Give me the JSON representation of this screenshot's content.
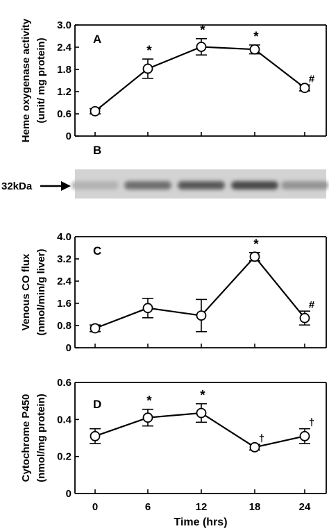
{
  "chart_data": [
    {
      "panel": "A",
      "type": "line",
      "ylabel_lines": [
        "Heme oxygenase activity",
        "(unit/ mg protein)"
      ],
      "x": [
        0,
        6,
        12,
        18,
        24
      ],
      "y": [
        0.67,
        1.82,
        2.41,
        2.34,
        1.3
      ],
      "yerr": [
        0.07,
        0.26,
        0.22,
        0.12,
        0.08
      ],
      "annotations": [
        "",
        "*",
        "*",
        "*",
        "#"
      ],
      "ylim": [
        0,
        3.0
      ],
      "yticks": [
        "0",
        "0.6",
        "1.2",
        "1.8",
        "2.4",
        "3.0"
      ],
      "ytick_values": [
        0,
        0.6,
        1.2,
        1.8,
        2.4,
        3.0
      ]
    },
    {
      "panel": "B",
      "type": "western-blot",
      "band_label": "32kDa",
      "band_intensity": [
        0.15,
        0.6,
        0.75,
        0.85,
        0.35
      ]
    },
    {
      "panel": "C",
      "type": "line",
      "ylabel_lines": [
        "Venous CO flux",
        "(nmol/min/g liver)"
      ],
      "x": [
        0,
        6,
        12,
        18,
        24
      ],
      "y": [
        0.7,
        1.43,
        1.16,
        3.28,
        1.07
      ],
      "yerr": [
        0.12,
        0.35,
        0.58,
        0.15,
        0.25
      ],
      "annotations": [
        "",
        "",
        "",
        "*",
        "#"
      ],
      "ylim": [
        0,
        4.0
      ],
      "yticks": [
        "0",
        "0.8",
        "1.6",
        "2.4",
        "3.2",
        "4.0"
      ],
      "ytick_values": [
        0,
        0.8,
        1.6,
        2.4,
        3.2,
        4.0
      ]
    },
    {
      "panel": "D",
      "type": "line",
      "ylabel_lines": [
        "Cytochrome P450",
        "(nmol/mg protein)"
      ],
      "x": [
        0,
        6,
        12,
        18,
        24
      ],
      "y": [
        0.31,
        0.41,
        0.435,
        0.25,
        0.31
      ],
      "yerr": [
        0.04,
        0.045,
        0.05,
        0.015,
        0.04
      ],
      "annotations": [
        "",
        "*",
        "*",
        "†",
        "†"
      ],
      "ylim": [
        0,
        0.6
      ],
      "yticks": [
        "0",
        "0.2",
        "0.4",
        "0.6"
      ],
      "ytick_values": [
        0,
        0.2,
        0.4,
        0.6
      ]
    }
  ],
  "xaxis": {
    "label": "Time (hrs)",
    "ticks": [
      "0",
      "6",
      "12",
      "18",
      "24"
    ]
  }
}
